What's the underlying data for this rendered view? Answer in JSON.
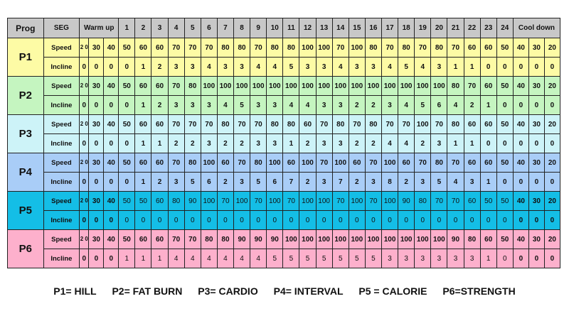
{
  "table": {
    "header": {
      "prog": "Prog",
      "seg": "SEG",
      "warmup": "Warm up",
      "segments": [
        "1",
        "2",
        "3",
        "4",
        "5",
        "6",
        "7",
        "8",
        "9",
        "10",
        "11",
        "12",
        "13",
        "14",
        "15",
        "16",
        "17",
        "18",
        "19",
        "20",
        "21",
        "22",
        "23",
        "24"
      ],
      "cooldown": "Cool down"
    },
    "programs": [
      {
        "id": "P1",
        "color": "#fdfba5",
        "speed": {
          "label": "Speed",
          "lead": "2 0",
          "warm": [
            "30",
            "40"
          ],
          "seg": [
            "50",
            "60",
            "60",
            "70",
            "70",
            "70",
            "80",
            "80",
            "70",
            "80",
            "80",
            "100",
            "100",
            "70",
            "100",
            "80",
            "70",
            "80",
            "70",
            "80",
            "70",
            "60",
            "60",
            "50"
          ],
          "cool": [
            "40",
            "30",
            "20"
          ]
        },
        "incline": {
          "label": "Incline",
          "lead": "0",
          "warm": [
            "0",
            "0"
          ],
          "seg": [
            "0",
            "1",
            "2",
            "3",
            "3",
            "4",
            "3",
            "3",
            "4",
            "4",
            "5",
            "3",
            "3",
            "4",
            "3",
            "3",
            "4",
            "5",
            "4",
            "3",
            "1",
            "1",
            "0",
            "0"
          ],
          "cool": [
            "0",
            "0",
            "0"
          ]
        }
      },
      {
        "id": "P2",
        "color": "#c5f5c0",
        "speed": {
          "label": "Speed",
          "lead": "2 0",
          "warm": [
            "30",
            "40"
          ],
          "seg": [
            "50",
            "60",
            "60",
            "70",
            "80",
            "100",
            "100",
            "100",
            "100",
            "100",
            "100",
            "100",
            "100",
            "100",
            "100",
            "100",
            "100",
            "100",
            "100",
            "100",
            "80",
            "70",
            "60",
            "50"
          ],
          "cool": [
            "40",
            "30",
            "20"
          ]
        },
        "incline": {
          "label": "Incline",
          "lead": "0",
          "warm": [
            "0",
            "0"
          ],
          "seg": [
            "0",
            "1",
            "2",
            "3",
            "3",
            "3",
            "4",
            "5",
            "3",
            "3",
            "4",
            "4",
            "3",
            "3",
            "2",
            "2",
            "3",
            "4",
            "5",
            "6",
            "4",
            "2",
            "1",
            "0"
          ],
          "cool": [
            "0",
            "0",
            "0"
          ]
        }
      },
      {
        "id": "P3",
        "color": "#cdf3f8",
        "speed": {
          "label": "Speed",
          "lead": "2 0",
          "warm": [
            "30",
            "40"
          ],
          "seg": [
            "50",
            "60",
            "60",
            "70",
            "70",
            "70",
            "80",
            "70",
            "70",
            "80",
            "80",
            "60",
            "70",
            "80",
            "70",
            "80",
            "70",
            "70",
            "100",
            "70",
            "80",
            "60",
            "60",
            "50"
          ],
          "cool": [
            "40",
            "30",
            "20"
          ]
        },
        "incline": {
          "label": "Incline",
          "lead": "0",
          "warm": [
            "0",
            "0"
          ],
          "seg": [
            "0",
            "1",
            "1",
            "2",
            "2",
            "3",
            "2",
            "2",
            "3",
            "3",
            "1",
            "2",
            "3",
            "3",
            "2",
            "2",
            "4",
            "4",
            "2",
            "3",
            "1",
            "1",
            "0",
            "0"
          ],
          "cool": [
            "0",
            "0",
            "0"
          ]
        }
      },
      {
        "id": "P4",
        "color": "#a9cdf7",
        "speed": {
          "label": "Speed",
          "lead": "2 0",
          "warm": [
            "30",
            "40"
          ],
          "seg": [
            "50",
            "60",
            "60",
            "70",
            "80",
            "100",
            "60",
            "70",
            "80",
            "100",
            "60",
            "100",
            "70",
            "100",
            "60",
            "70",
            "100",
            "60",
            "70",
            "80",
            "70",
            "60",
            "60",
            "50"
          ],
          "cool": [
            "40",
            "30",
            "20"
          ]
        },
        "incline": {
          "label": "Incline",
          "lead": "0",
          "warm": [
            "0",
            "0"
          ],
          "seg": [
            "0",
            "1",
            "2",
            "3",
            "5",
            "6",
            "2",
            "3",
            "5",
            "6",
            "7",
            "2",
            "3",
            "7",
            "2",
            "3",
            "8",
            "2",
            "3",
            "5",
            "4",
            "3",
            "1",
            "0"
          ],
          "cool": [
            "0",
            "0",
            "0"
          ]
        }
      },
      {
        "id": "P5",
        "color": "#14bee6",
        "speed": {
          "label": "Speed",
          "lead": "2 0",
          "warm": [
            "30",
            "40"
          ],
          "seg": [
            "50",
            "50",
            "60",
            "80",
            "90",
            "100",
            "70",
            "100",
            "70",
            "100",
            "70",
            "100",
            "100",
            "70",
            "100",
            "70",
            "100",
            "90",
            "80",
            "70",
            "70",
            "60",
            "50",
            "50"
          ],
          "cool": [
            "40",
            "30",
            "20"
          ]
        },
        "incline": {
          "label": "Incline",
          "lead": "0",
          "warm": [
            "0",
            "0"
          ],
          "seg": [
            "0",
            "0",
            "0",
            "0",
            "0",
            "0",
            "0",
            "0",
            "0",
            "0",
            "0",
            "0",
            "0",
            "0",
            "0",
            "0",
            "0",
            "0",
            "0",
            "0",
            "0",
            "0",
            "0",
            "0"
          ],
          "cool": [
            "0",
            "0",
            "0"
          ]
        }
      },
      {
        "id": "P6",
        "color": "#fdb0cc",
        "speed": {
          "label": "Speed",
          "lead": "2 0",
          "warm": [
            "30",
            "40"
          ],
          "seg": [
            "50",
            "60",
            "60",
            "70",
            "70",
            "80",
            "80",
            "90",
            "90",
            "90",
            "100",
            "100",
            "100",
            "100",
            "100",
            "100",
            "100",
            "100",
            "100",
            "100",
            "90",
            "80",
            "60",
            "50"
          ],
          "cool": [
            "40",
            "30",
            "20"
          ]
        },
        "incline": {
          "label": "Incline",
          "lead": "0",
          "warm": [
            "0",
            "0"
          ],
          "seg": [
            "1",
            "1",
            "1",
            "4",
            "4",
            "4",
            "4",
            "4",
            "4",
            "5",
            "5",
            "5",
            "5",
            "5",
            "5",
            "5",
            "3",
            "3",
            "3",
            "3",
            "3",
            "3",
            "1",
            "0"
          ],
          "cool": [
            "0",
            "0",
            "0"
          ]
        }
      }
    ]
  },
  "legend": [
    "P1= HILL",
    "P2= FAT BURN",
    "P3= CARDIO",
    "P4= INTERVAL",
    "P5 = CALORIE",
    "P6=STRENGTH"
  ]
}
